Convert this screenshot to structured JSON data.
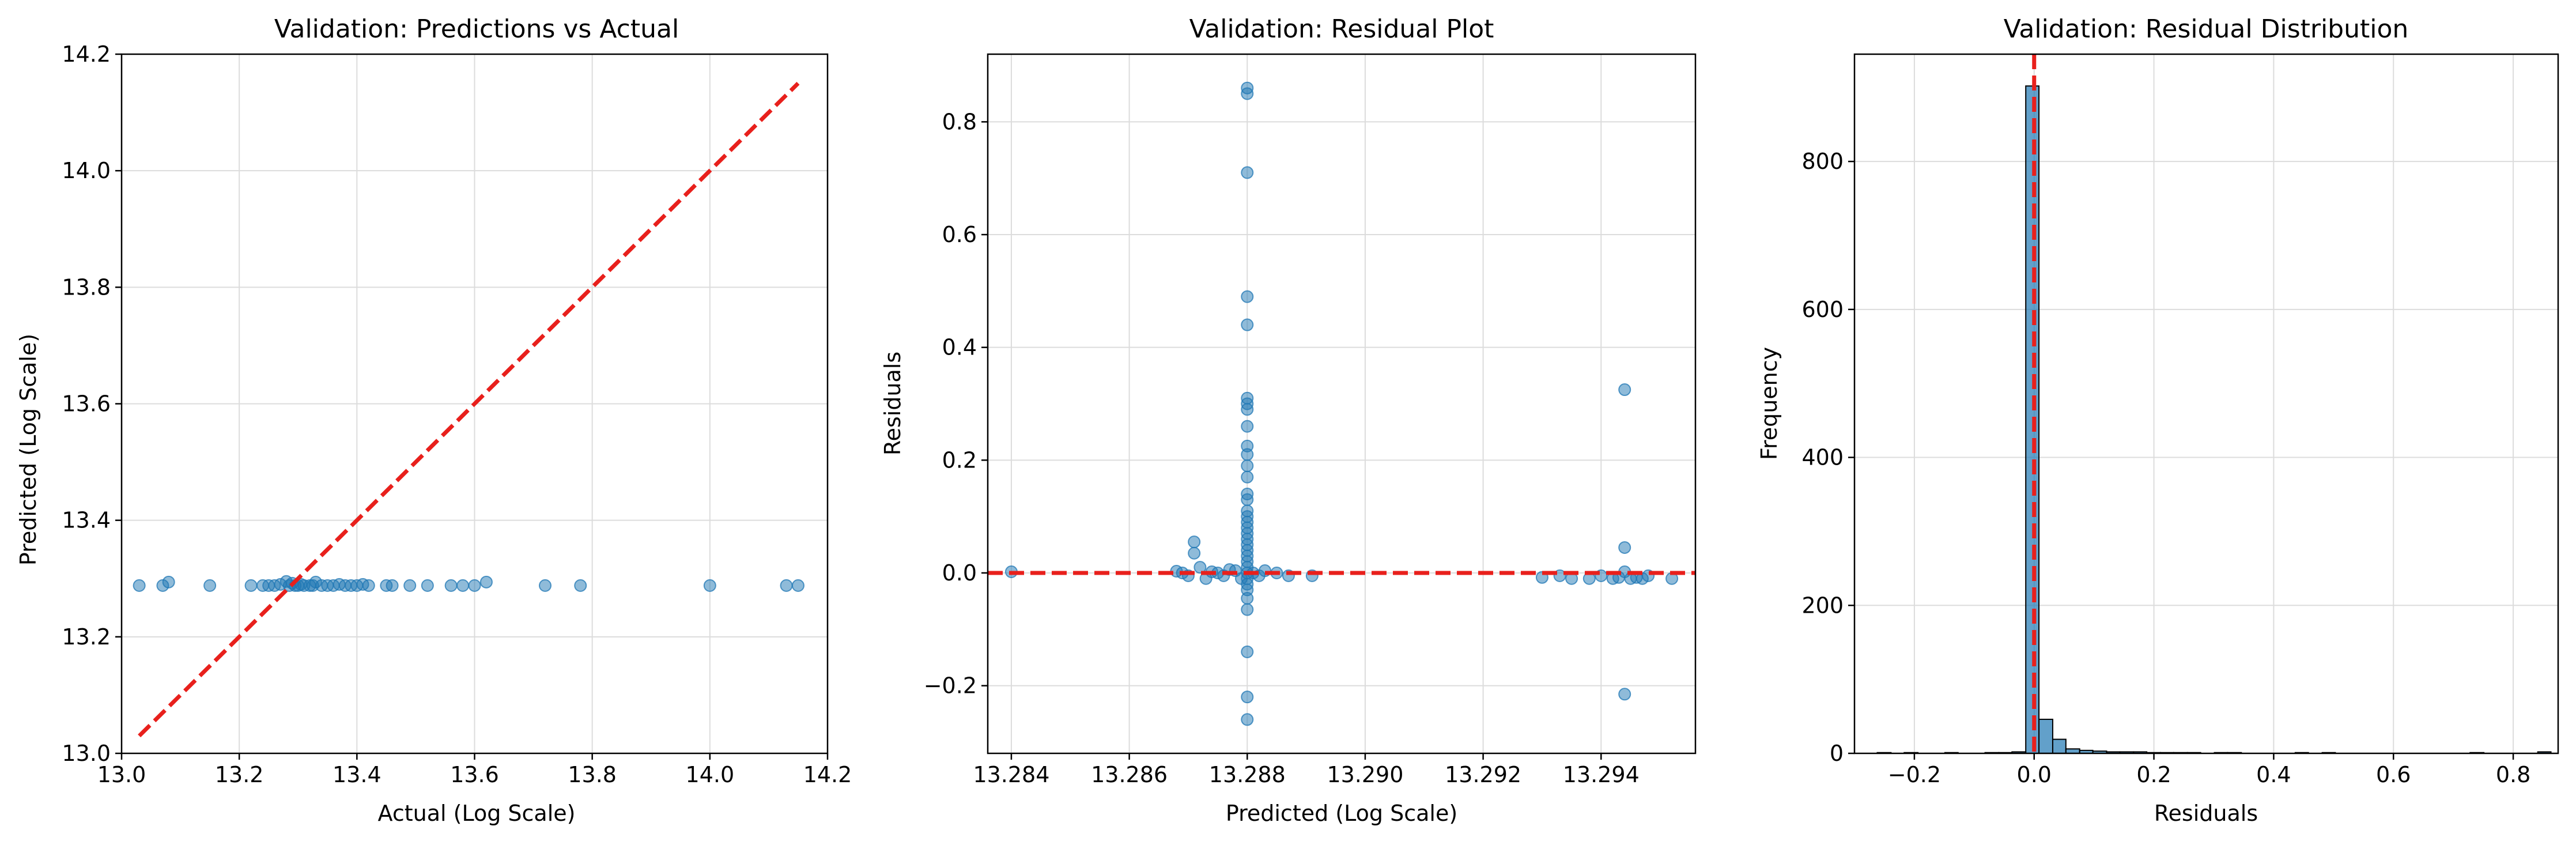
{
  "chart_data": [
    {
      "type": "scatter",
      "title": "Validation: Predictions vs Actual",
      "xlabel": "Actual (Log Scale)",
      "ylabel": "Predicted (Log Scale)",
      "xlim": [
        13.0,
        14.2
      ],
      "ylim": [
        13.0,
        14.2
      ],
      "xticks": [
        13.0,
        13.2,
        13.4,
        13.6,
        13.8,
        14.0,
        14.2
      ],
      "yticks": [
        13.0,
        13.2,
        13.4,
        13.6,
        13.8,
        14.0,
        14.2
      ],
      "x_tick_labels": [
        "13.0",
        "13.2",
        "13.4",
        "13.6",
        "13.8",
        "14.0",
        "14.2"
      ],
      "y_tick_labels": [
        "13.0",
        "13.2",
        "13.4",
        "13.6",
        "13.8",
        "14.0",
        "14.2"
      ],
      "grid": true,
      "reference_line": {
        "x": [
          13.03,
          14.15
        ],
        "y": [
          13.03,
          14.15
        ],
        "color": "#e8201c",
        "style": "dashed"
      },
      "marker_color": "#1f77b4",
      "points": [
        [
          13.03,
          13.288
        ],
        [
          13.07,
          13.288
        ],
        [
          13.08,
          13.294
        ],
        [
          13.15,
          13.288
        ],
        [
          13.22,
          13.288
        ],
        [
          13.24,
          13.288
        ],
        [
          13.25,
          13.288
        ],
        [
          13.26,
          13.288
        ],
        [
          13.27,
          13.29
        ],
        [
          13.28,
          13.295
        ],
        [
          13.285,
          13.288
        ],
        [
          13.29,
          13.292
        ],
        [
          13.295,
          13.288
        ],
        [
          13.3,
          13.288
        ],
        [
          13.305,
          13.29
        ],
        [
          13.31,
          13.288
        ],
        [
          13.32,
          13.288
        ],
        [
          13.325,
          13.288
        ],
        [
          13.33,
          13.294
        ],
        [
          13.34,
          13.288
        ],
        [
          13.35,
          13.288
        ],
        [
          13.36,
          13.288
        ],
        [
          13.37,
          13.29
        ],
        [
          13.38,
          13.288
        ],
        [
          13.39,
          13.288
        ],
        [
          13.4,
          13.288
        ],
        [
          13.41,
          13.29
        ],
        [
          13.42,
          13.288
        ],
        [
          13.45,
          13.288
        ],
        [
          13.46,
          13.288
        ],
        [
          13.49,
          13.288
        ],
        [
          13.52,
          13.288
        ],
        [
          13.56,
          13.288
        ],
        [
          13.58,
          13.288
        ],
        [
          13.6,
          13.288
        ],
        [
          13.62,
          13.294
        ],
        [
          13.72,
          13.288
        ],
        [
          13.78,
          13.288
        ],
        [
          14.0,
          13.288
        ],
        [
          14.13,
          13.288
        ],
        [
          14.15,
          13.288
        ]
      ]
    },
    {
      "type": "scatter",
      "title": "Validation: Residual Plot",
      "xlabel": "Predicted (Log Scale)",
      "ylabel": "Residuals",
      "xlim": [
        13.2836,
        13.2956
      ],
      "ylim": [
        -0.32,
        0.92
      ],
      "xticks": [
        13.284,
        13.286,
        13.288,
        13.29,
        13.292,
        13.294
      ],
      "yticks": [
        -0.2,
        0.0,
        0.2,
        0.4,
        0.6,
        0.8
      ],
      "x_tick_labels": [
        "13.284",
        "13.286",
        "13.288",
        "13.290",
        "13.292",
        "13.294"
      ],
      "y_tick_labels": [
        "−0.2",
        "0.0",
        "0.2",
        "0.4",
        "0.6",
        "0.8"
      ],
      "grid": true,
      "reference_line": {
        "y": 0.0,
        "color": "#e8201c",
        "style": "dashed"
      },
      "marker_color": "#1f77b4",
      "points": [
        [
          13.284,
          0.002
        ],
        [
          13.2868,
          0.003
        ],
        [
          13.2869,
          0.0
        ],
        [
          13.287,
          -0.005
        ],
        [
          13.2871,
          0.055
        ],
        [
          13.2871,
          0.035
        ],
        [
          13.2872,
          0.01
        ],
        [
          13.2873,
          -0.01
        ],
        [
          13.2874,
          0.002
        ],
        [
          13.2875,
          0.0
        ],
        [
          13.2876,
          -0.005
        ],
        [
          13.2877,
          0.006
        ],
        [
          13.2878,
          0.004
        ],
        [
          13.2879,
          -0.01
        ],
        [
          13.288,
          0.86
        ],
        [
          13.288,
          0.85
        ],
        [
          13.288,
          0.71
        ],
        [
          13.288,
          0.49
        ],
        [
          13.288,
          0.44
        ],
        [
          13.288,
          0.31
        ],
        [
          13.288,
          0.3
        ],
        [
          13.288,
          0.29
        ],
        [
          13.288,
          0.26
        ],
        [
          13.288,
          0.225
        ],
        [
          13.288,
          0.21
        ],
        [
          13.288,
          0.19
        ],
        [
          13.288,
          0.17
        ],
        [
          13.288,
          0.14
        ],
        [
          13.288,
          0.13
        ],
        [
          13.288,
          0.11
        ],
        [
          13.288,
          0.1
        ],
        [
          13.288,
          0.09
        ],
        [
          13.288,
          0.08
        ],
        [
          13.288,
          0.07
        ],
        [
          13.288,
          0.06
        ],
        [
          13.288,
          0.05
        ],
        [
          13.288,
          0.04
        ],
        [
          13.288,
          0.03
        ],
        [
          13.288,
          0.02
        ],
        [
          13.288,
          0.01
        ],
        [
          13.288,
          0.0
        ],
        [
          13.288,
          -0.01
        ],
        [
          13.288,
          -0.02
        ],
        [
          13.288,
          -0.03
        ],
        [
          13.288,
          -0.045
        ],
        [
          13.288,
          -0.065
        ],
        [
          13.288,
          -0.14
        ],
        [
          13.288,
          -0.22
        ],
        [
          13.288,
          -0.26
        ],
        [
          13.2881,
          0.0
        ],
        [
          13.2882,
          -0.005
        ],
        [
          13.2883,
          0.004
        ],
        [
          13.2885,
          0.0
        ],
        [
          13.2887,
          -0.005
        ],
        [
          13.2891,
          -0.005
        ],
        [
          13.293,
          -0.008
        ],
        [
          13.2933,
          -0.005
        ],
        [
          13.2935,
          -0.01
        ],
        [
          13.2938,
          -0.01
        ],
        [
          13.294,
          -0.005
        ],
        [
          13.2942,
          -0.01
        ],
        [
          13.2943,
          -0.008
        ],
        [
          13.2944,
          0.325
        ],
        [
          13.2944,
          0.045
        ],
        [
          13.2944,
          0.002
        ],
        [
          13.2944,
          -0.215
        ],
        [
          13.2945,
          -0.01
        ],
        [
          13.2946,
          -0.008
        ],
        [
          13.2947,
          -0.01
        ],
        [
          13.2948,
          -0.005
        ],
        [
          13.2952,
          -0.01
        ]
      ]
    },
    {
      "type": "bar",
      "title": "Validation: Residual Distribution",
      "xlabel": "Residuals",
      "ylabel": "Frequency",
      "xlim": [
        -0.3,
        0.875
      ],
      "ylim": [
        0,
        945
      ],
      "xticks": [
        -0.2,
        0.0,
        0.2,
        0.4,
        0.6,
        0.8
      ],
      "yticks": [
        0,
        200,
        400,
        600,
        800
      ],
      "x_tick_labels": [
        "−0.2",
        "0.0",
        "0.2",
        "0.4",
        "0.6",
        "0.8"
      ],
      "y_tick_labels": [
        "0",
        "200",
        "400",
        "600",
        "800"
      ],
      "grid": true,
      "reference_line": {
        "x": 0.0,
        "color": "#e8201c",
        "style": "dashed"
      },
      "bar_color": "#1f77b4",
      "bar_edge_color": "#000000",
      "bin_edges": [
        -0.262,
        -0.239,
        -0.217,
        -0.194,
        -0.172,
        -0.149,
        -0.127,
        -0.104,
        -0.082,
        -0.059,
        -0.037,
        -0.014,
        0.008,
        0.031,
        0.053,
        0.076,
        0.098,
        0.121,
        0.143,
        0.166,
        0.188,
        0.211,
        0.233,
        0.256,
        0.278,
        0.301,
        0.323,
        0.346,
        0.368,
        0.391,
        0.413,
        0.436,
        0.458,
        0.481,
        0.503,
        0.526,
        0.548,
        0.571,
        0.593,
        0.616,
        0.638,
        0.661,
        0.683,
        0.706,
        0.728,
        0.751,
        0.773,
        0.796,
        0.818,
        0.841,
        0.863
      ],
      "counts": [
        1,
        0,
        1,
        0,
        0,
        1,
        0,
        0,
        1,
        1,
        2,
        902,
        46,
        19,
        6,
        4,
        3,
        2,
        2,
        2,
        1,
        1,
        1,
        1,
        0,
        1,
        1,
        0,
        0,
        0,
        0,
        1,
        0,
        1,
        0,
        0,
        0,
        0,
        0,
        0,
        0,
        0,
        0,
        0,
        1,
        0,
        0,
        0,
        0,
        2
      ]
    }
  ]
}
